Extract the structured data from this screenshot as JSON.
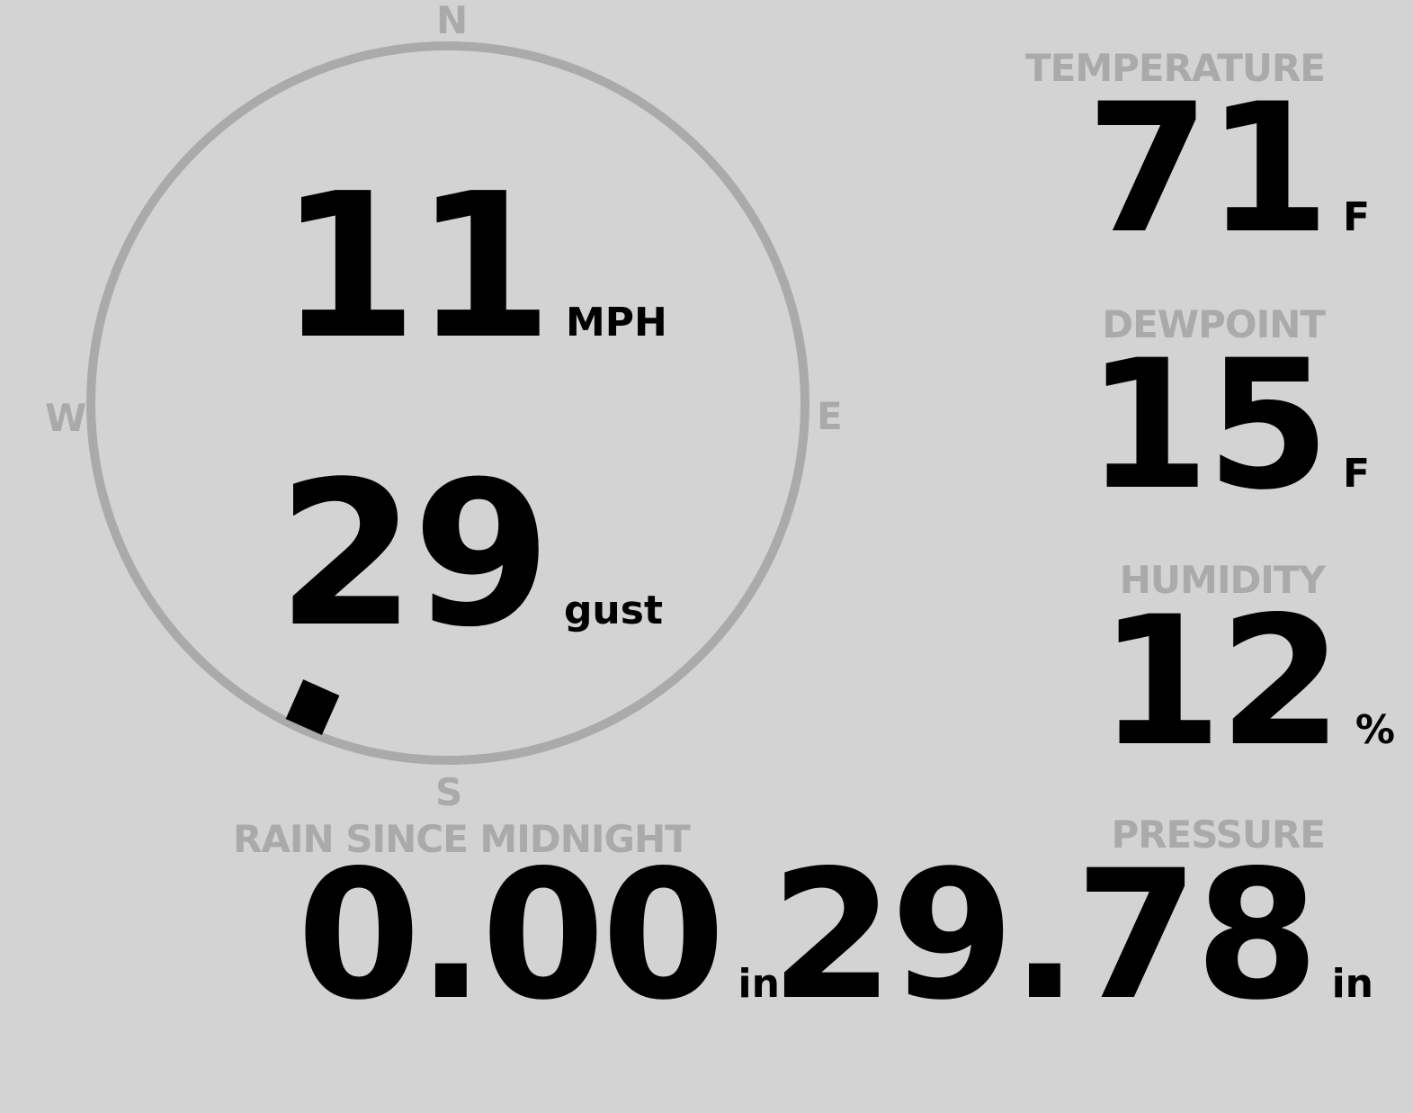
{
  "wind": {
    "speed": "11",
    "speed_unit": "MPH",
    "gust": "29",
    "gust_unit": "gust",
    "direction_deg": 204,
    "cardinals": {
      "n": "N",
      "e": "E",
      "s": "S",
      "w": "W"
    },
    "ring_color": "#aaaaaa",
    "marker_color": "#000000"
  },
  "temperature": {
    "label": "TEMPERATURE",
    "value": "71",
    "unit": "F"
  },
  "dewpoint": {
    "label": "DEWPOINT",
    "value": "15",
    "unit": "F"
  },
  "humidity": {
    "label": "HUMIDITY",
    "value": "12",
    "unit": "%"
  },
  "rain": {
    "label": "RAIN SINCE MIDNIGHT",
    "value": "0.00",
    "unit": "in"
  },
  "pressure": {
    "label": "PRESSURE",
    "value": "29.78",
    "unit": "in"
  }
}
